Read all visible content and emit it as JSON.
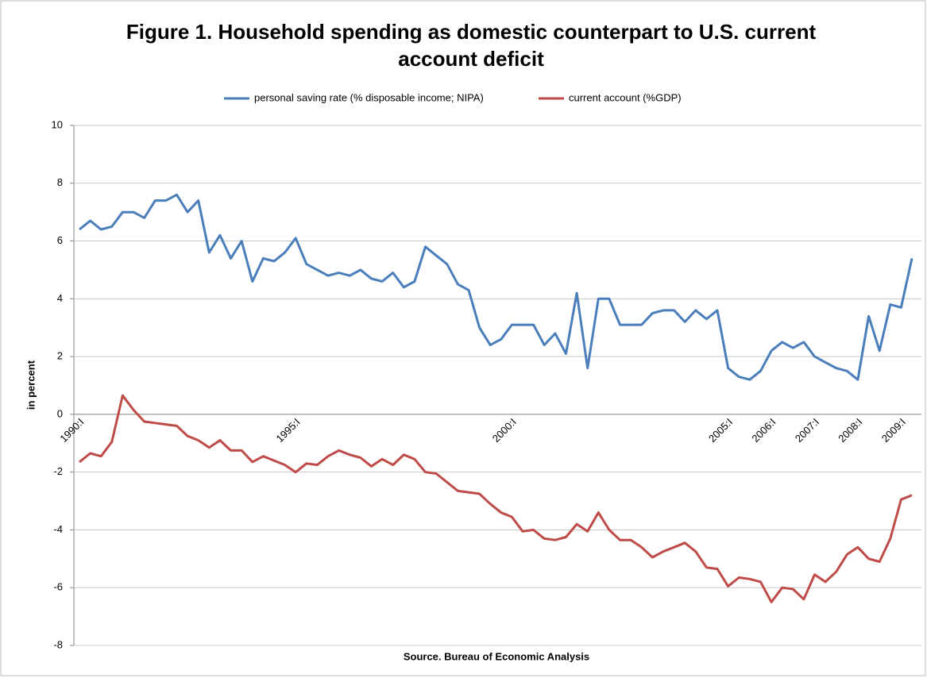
{
  "chart_data": {
    "type": "line",
    "title": "Figure 1. Household spending as domestic counterpart to U.S. current account deficit",
    "ylabel": "in percent",
    "source": "Source. Bureau of Economic Analysis",
    "categories": [
      "1990:I",
      null,
      null,
      null,
      null,
      null,
      null,
      null,
      null,
      null,
      null,
      null,
      null,
      null,
      null,
      null,
      null,
      null,
      null,
      null,
      "1995:I",
      null,
      null,
      null,
      null,
      null,
      null,
      null,
      null,
      null,
      null,
      null,
      null,
      null,
      null,
      null,
      null,
      null,
      null,
      null,
      "2000:I",
      null,
      null,
      null,
      null,
      null,
      null,
      null,
      null,
      null,
      null,
      null,
      null,
      null,
      null,
      null,
      null,
      null,
      null,
      null,
      "2005:I",
      null,
      null,
      null,
      "2006:I",
      null,
      null,
      null,
      "2007:I",
      null,
      null,
      null,
      "2008:I",
      null,
      null,
      null,
      "2009:I",
      null
    ],
    "series": [
      {
        "name": "personal saving rate (% disposable income; NIPA)",
        "color": "#4a7ebb",
        "values": [
          6.4,
          6.7,
          6.4,
          6.5,
          7.0,
          7.0,
          6.8,
          7.4,
          7.4,
          7.6,
          7.0,
          7.4,
          5.6,
          6.2,
          5.4,
          6.0,
          4.6,
          5.4,
          5.3,
          5.6,
          6.1,
          5.2,
          5.0,
          4.8,
          4.9,
          4.8,
          5.0,
          4.7,
          4.6,
          4.9,
          4.4,
          4.6,
          5.8,
          5.5,
          5.2,
          4.5,
          4.3,
          3.0,
          2.4,
          2.6,
          3.1,
          3.1,
          3.1,
          2.4,
          2.8,
          2.1,
          4.2,
          1.6,
          4.0,
          4.0,
          3.1,
          3.1,
          3.1,
          3.5,
          3.6,
          3.6,
          3.2,
          3.6,
          3.3,
          3.6,
          1.6,
          1.3,
          1.2,
          1.5,
          2.2,
          2.5,
          2.3,
          2.5,
          2.0,
          1.8,
          1.6,
          1.5,
          1.2,
          3.4,
          2.2,
          3.8,
          3.7,
          5.4
        ]
      },
      {
        "name": "current account (%GDP)",
        "color": "#be4b48",
        "values": [
          -1.65,
          -1.35,
          -1.45,
          -0.95,
          0.65,
          0.15,
          -0.25,
          -0.3,
          -0.35,
          -0.4,
          -0.75,
          -0.9,
          -1.15,
          -0.9,
          -1.25,
          -1.25,
          -1.65,
          -1.45,
          -1.6,
          -1.75,
          -2.0,
          -1.7,
          -1.75,
          -1.45,
          -1.25,
          -1.4,
          -1.5,
          -1.8,
          -1.55,
          -1.75,
          -1.4,
          -1.55,
          -2.0,
          -2.05,
          -2.35,
          -2.65,
          -2.7,
          -2.75,
          -3.1,
          -3.4,
          -3.55,
          -4.05,
          -4.0,
          -4.3,
          -4.35,
          -4.25,
          -3.8,
          -4.05,
          -3.4,
          -4.0,
          -4.35,
          -4.35,
          -4.6,
          -4.95,
          -4.75,
          -4.6,
          -4.45,
          -4.75,
          -5.3,
          -5.35,
          -5.95,
          -5.65,
          -5.7,
          -5.8,
          -6.5,
          -6.0,
          -6.05,
          -6.4,
          -5.55,
          -5.8,
          -5.45,
          -4.85,
          -4.6,
          -5.0,
          -5.1,
          -4.3,
          -2.95,
          -2.8
        ]
      }
    ],
    "ylim": [
      -8,
      10
    ],
    "yticks": [
      -8,
      -6,
      -4,
      -2,
      0,
      2,
      4,
      6,
      8,
      10
    ],
    "grid": true,
    "legend": "top"
  }
}
